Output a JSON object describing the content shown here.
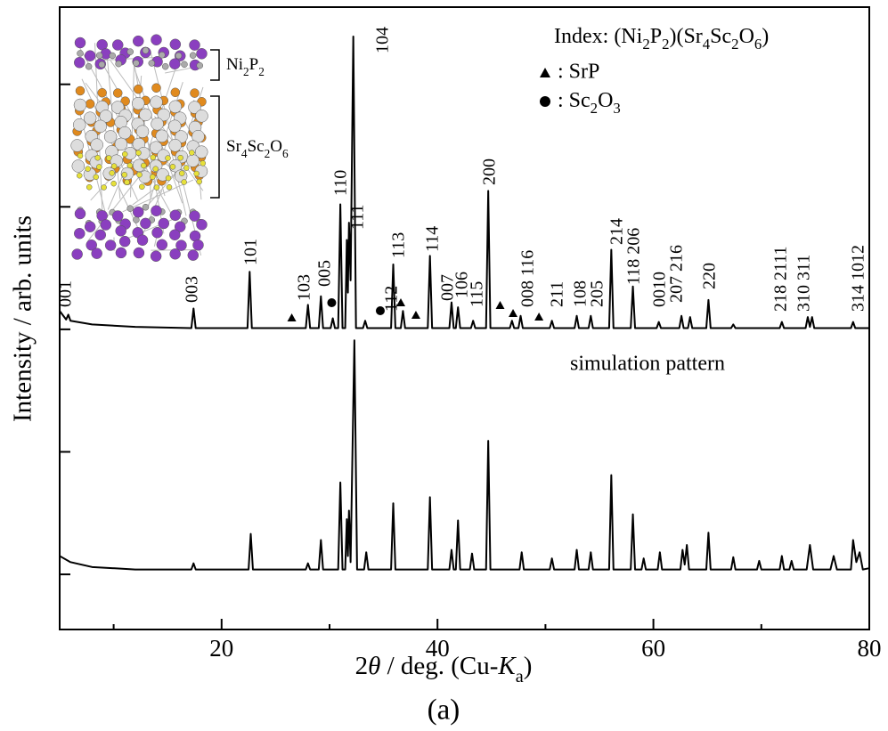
{
  "chart_data": {
    "type": "line",
    "xlabel": "2θ / deg. (Cu-Ka)",
    "ylabel": "Intensity / arb. units",
    "panel_label": "(a)",
    "xlim": [
      5,
      80
    ],
    "xticks": [
      20,
      40,
      60,
      80
    ],
    "xminorticks": [
      10,
      30,
      50,
      70
    ],
    "ylim": [
      -0.45,
      4.63
    ],
    "yticks": [
      0,
      1,
      2,
      3,
      4
    ],
    "grid": false,
    "series": [
      {
        "color": "#000000",
        "x": [
          5,
          5.6,
          5.8,
          6.0,
          8,
          12,
          17.2,
          17.4,
          17.6,
          22.4,
          22.6,
          22.8,
          27.8,
          28.0,
          28.2,
          29.0,
          29.2,
          29.4,
          30.1,
          30.3,
          30.5,
          30.8,
          31.0,
          31.2,
          31.45,
          31.6,
          31.7,
          31.8,
          31.95,
          32.2,
          32.45,
          33.1,
          33.3,
          33.5,
          35.7,
          35.9,
          36.1,
          36.6,
          36.8,
          37.0,
          39.1,
          39.3,
          39.5,
          41.1,
          41.3,
          41.5,
          41.7,
          41.9,
          42.1,
          43.1,
          43.3,
          43.5,
          44.5,
          44.7,
          44.9,
          46.7,
          46.9,
          47.1,
          47.5,
          47.7,
          47.9,
          50.4,
          50.6,
          50.8,
          52.7,
          52.9,
          53.1,
          54.0,
          54.2,
          54.4,
          55.9,
          56.1,
          56.3,
          57.9,
          58.1,
          58.3,
          60.3,
          60.5,
          60.7,
          62.4,
          62.6,
          62.8,
          63.2,
          63.4,
          63.6,
          64.9,
          65.1,
          65.3,
          67.2,
          67.4,
          67.6,
          71.7,
          71.9,
          72.1,
          74.1,
          74.3,
          74.5,
          74.7,
          74.9,
          78.3,
          78.5,
          78.7,
          80
        ],
        "values": [
          2.15,
          2.08,
          2.12,
          2.07,
          2.04,
          2.02,
          2.01,
          2.17,
          2.01,
          2.01,
          2.47,
          2.01,
          2.01,
          2.2,
          2.01,
          2.01,
          2.27,
          2.01,
          2.01,
          2.09,
          2.01,
          2.01,
          3.02,
          2.01,
          2.01,
          2.73,
          2.3,
          2.87,
          2.4,
          4.39,
          2.01,
          2.01,
          2.07,
          2.01,
          2.01,
          2.53,
          2.01,
          2.01,
          2.15,
          2.01,
          2.01,
          2.6,
          2.01,
          2.01,
          2.22,
          2.01,
          2.01,
          2.18,
          2.01,
          2.01,
          2.07,
          2.01,
          2.01,
          3.13,
          2.01,
          2.01,
          2.07,
          2.01,
          2.01,
          2.11,
          2.01,
          2.01,
          2.07,
          2.01,
          2.01,
          2.11,
          2.01,
          2.01,
          2.11,
          2.01,
          2.01,
          2.65,
          2.01,
          2.01,
          2.35,
          2.01,
          2.01,
          2.06,
          2.01,
          2.01,
          2.11,
          2.01,
          2.01,
          2.1,
          2.01,
          2.01,
          2.24,
          2.01,
          2.01,
          2.04,
          2.01,
          2.01,
          2.06,
          2.01,
          2.01,
          2.1,
          2.02,
          2.1,
          2.01,
          2.01,
          2.06,
          2.01,
          2.01
        ]
      },
      {
        "color": "#000000",
        "x": [
          5,
          6,
          8,
          12,
          17.2,
          17.4,
          17.6,
          22.5,
          22.7,
          22.9,
          27.8,
          28.0,
          28.2,
          29.0,
          29.2,
          29.4,
          30.8,
          31.0,
          31.2,
          31.45,
          31.6,
          31.7,
          31.8,
          31.95,
          32.3,
          32.55,
          33.2,
          33.4,
          33.6,
          35.7,
          35.9,
          36.1,
          39.1,
          39.3,
          39.5,
          41.1,
          41.3,
          41.5,
          41.7,
          41.9,
          42.1,
          43.0,
          43.2,
          43.4,
          44.5,
          44.7,
          44.9,
          47.6,
          47.8,
          48.0,
          50.4,
          50.6,
          50.8,
          52.7,
          52.9,
          53.1,
          54.0,
          54.2,
          54.4,
          55.9,
          56.1,
          56.3,
          57.9,
          58.1,
          58.3,
          58.9,
          59.1,
          59.3,
          60.4,
          60.6,
          60.8,
          62.5,
          62.7,
          62.9,
          63.1,
          63.3,
          64.9,
          65.1,
          65.3,
          67.2,
          67.4,
          67.6,
          69.6,
          69.8,
          70.0,
          71.7,
          71.9,
          72.1,
          72.6,
          72.8,
          73.0,
          74.2,
          74.5,
          74.8,
          76.4,
          76.7,
          77.0,
          78.3,
          78.5,
          78.8,
          79.1,
          79.4,
          80
        ],
        "values": [
          0.15,
          0.1,
          0.06,
          0.04,
          0.04,
          0.09,
          0.04,
          0.04,
          0.33,
          0.04,
          0.04,
          0.09,
          0.04,
          0.04,
          0.28,
          0.04,
          0.04,
          0.75,
          0.04,
          0.04,
          0.45,
          0.15,
          0.52,
          0.1,
          1.91,
          0.04,
          0.04,
          0.18,
          0.04,
          0.04,
          0.58,
          0.04,
          0.04,
          0.63,
          0.04,
          0.04,
          0.2,
          0.04,
          0.04,
          0.44,
          0.04,
          0.04,
          0.17,
          0.04,
          0.04,
          1.09,
          0.04,
          0.04,
          0.18,
          0.04,
          0.04,
          0.13,
          0.04,
          0.04,
          0.2,
          0.04,
          0.04,
          0.18,
          0.04,
          0.04,
          0.81,
          0.04,
          0.04,
          0.49,
          0.04,
          0.04,
          0.13,
          0.04,
          0.04,
          0.18,
          0.04,
          0.04,
          0.2,
          0.08,
          0.24,
          0.04,
          0.04,
          0.34,
          0.04,
          0.04,
          0.14,
          0.04,
          0.04,
          0.11,
          0.04,
          0.04,
          0.15,
          0.04,
          0.04,
          0.11,
          0.04,
          0.04,
          0.24,
          0.04,
          0.04,
          0.15,
          0.04,
          0.04,
          0.28,
          0.1,
          0.18,
          0.04,
          0.05
        ]
      }
    ],
    "peak_labels": [
      "001",
      "003",
      "101",
      "103",
      "005",
      "110",
      "111",
      "104",
      "112",
      "113",
      "114",
      "007",
      "106",
      "115",
      "200",
      "008 116",
      "211",
      "108",
      "205",
      "214",
      "118 206",
      "0010",
      "207 216",
      "220",
      "218 2111",
      "310 311",
      "314 1012"
    ],
    "legend": {
      "index": "Index: (Ni2P2)(Sr4Sc2O6)",
      "srp": ": SrP",
      "sc2o3": ": Sc2O3"
    },
    "simulation_label": "simulation pattern",
    "structure_labels": {
      "layer1": "Ni2P2",
      "layer2": "Sr4Sc2O6"
    }
  }
}
